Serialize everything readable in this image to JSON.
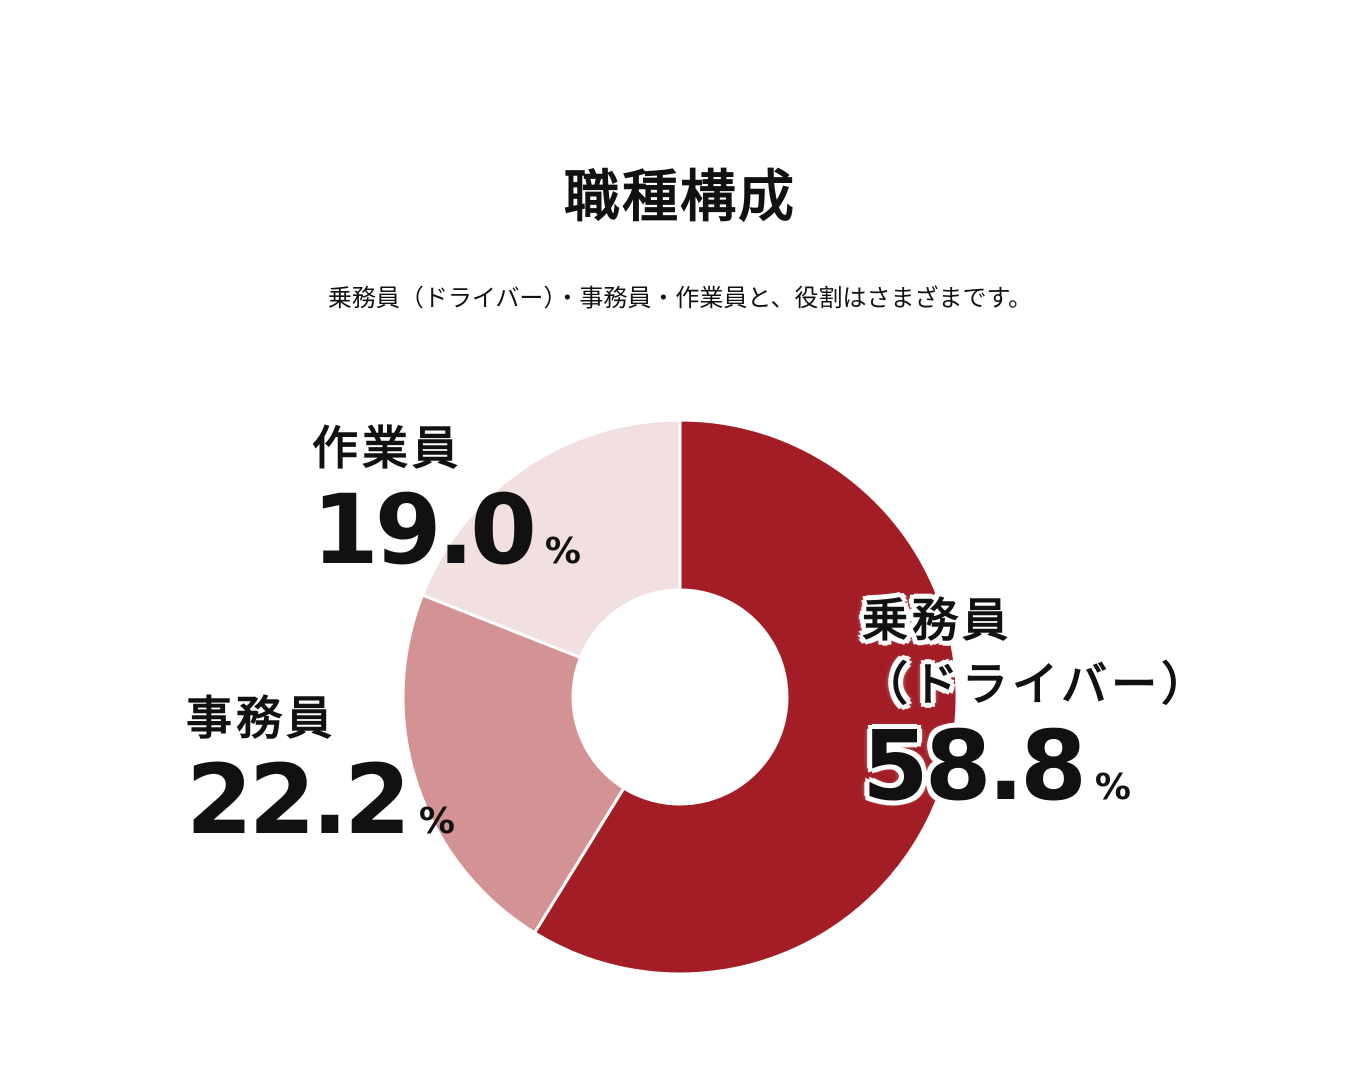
{
  "title": "職種構成",
  "subtitle": "乗務員（ドライバー）・事務員・作業員と、役割はさまざまです。",
  "chart_data": {
    "type": "pie",
    "donut": true,
    "unit": "%",
    "slices": [
      {
        "key": "driver",
        "label_line1": "乗務員",
        "label_line2": "（ドライバー）",
        "value": 58.8,
        "value_text": "58.8",
        "color": "#a31d26"
      },
      {
        "key": "office",
        "label_line1": "事務員",
        "value": 22.2,
        "value_text": "22.2",
        "color": "#d39395"
      },
      {
        "key": "worker",
        "label_line1": "作業員",
        "value": 19.0,
        "value_text": "19.0",
        "color": "#f2dfe0"
      }
    ]
  }
}
